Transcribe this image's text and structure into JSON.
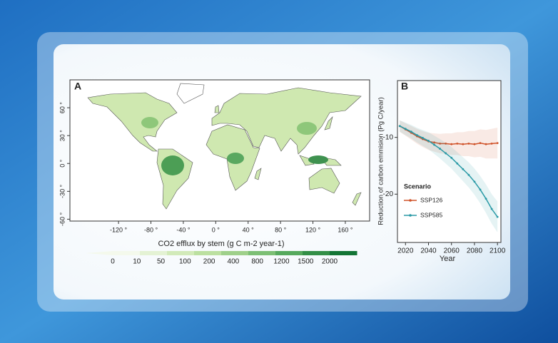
{
  "chart_data": [
    {
      "type": "map",
      "panel": "A",
      "xticks": [
        {
          "value": -120,
          "label": "-120 °"
        },
        {
          "value": -80,
          "label": "-80 °"
        },
        {
          "value": -40,
          "label": "-40 °"
        },
        {
          "value": 0,
          "label": "0 °"
        },
        {
          "value": 40,
          "label": "40 °"
        },
        {
          "value": 80,
          "label": "80 °"
        },
        {
          "value": 120,
          "label": "120 °"
        },
        {
          "value": 160,
          "label": "160 °"
        }
      ],
      "yticks": [
        {
          "value": 60,
          "label": "60 °"
        },
        {
          "value": 30,
          "label": "30 °"
        },
        {
          "value": 0,
          "label": "0 °"
        },
        {
          "value": -30,
          "label": "-30 °"
        },
        {
          "value": -60,
          "label": "-60 °"
        }
      ],
      "xlim": [
        -180,
        190
      ],
      "ylim": [
        -62,
        90
      ],
      "colorbar": {
        "title": "CO2 efflux by stem (g C m-2 year-1)",
        "ticks": [
          0,
          10,
          50,
          100,
          200,
          400,
          800,
          1200,
          1500,
          2000
        ],
        "colors": [
          "#f4f9ec",
          "#e4f2d4",
          "#d2eab9",
          "#bce0a0",
          "#9fd08a",
          "#7cbf74",
          "#56a95d",
          "#338f47",
          "#137535"
        ]
      }
    },
    {
      "type": "line",
      "panel": "B",
      "xlabel": "Year",
      "ylabel": "Reduction of carbon emmision (Pg C/year)",
      "x": [
        2015,
        2020,
        2025,
        2030,
        2035,
        2040,
        2045,
        2050,
        2055,
        2060,
        2065,
        2070,
        2075,
        2080,
        2085,
        2090,
        2095,
        2100
      ],
      "xlim": [
        2013,
        2103
      ],
      "xticks": [
        2020,
        2040,
        2060,
        2080,
        2100
      ],
      "ylim": [
        -28.5,
        0
      ],
      "yticks": [
        -10,
        -20
      ],
      "legend_title": "Scenario",
      "series": [
        {
          "name": "SSP126",
          "color": "#d0532a",
          "values": [
            -8,
            -8.6,
            -9.2,
            -9.8,
            -10.3,
            -10.7,
            -10.9,
            -11.1,
            -11.1,
            -11.2,
            -11.1,
            -11.2,
            -11.1,
            -11.2,
            -11.0,
            -11.2,
            -11.1,
            -11.0
          ]
        },
        {
          "name": "SSP585",
          "color": "#2a9aa6",
          "values": [
            -8,
            -8.5,
            -9.0,
            -9.6,
            -10.1,
            -10.6,
            -11.3,
            -12.0,
            -12.8,
            -13.6,
            -14.6,
            -15.6,
            -16.6,
            -17.8,
            -19.2,
            -20.8,
            -22.6,
            -24.0
          ]
        }
      ]
    }
  ]
}
